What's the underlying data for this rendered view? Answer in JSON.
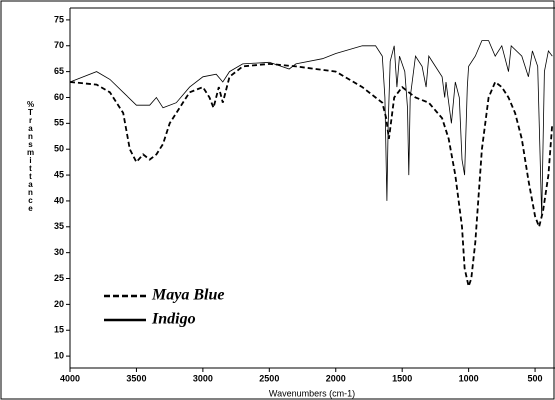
{
  "chart_data": {
    "type": "line",
    "y_label": "%Transmittance",
    "x_label": "Wavenumbers (cm-1)",
    "xlim": [
      4000,
      350
    ],
    "ylim": [
      7.7,
      77.3
    ],
    "xticks": [
      4000,
      3500,
      3000,
      2500,
      2000,
      1500,
      1000,
      500
    ],
    "yticks": [
      10,
      15,
      20,
      25,
      30,
      35,
      40,
      45,
      50,
      55,
      60,
      65,
      70,
      75
    ],
    "series": [
      {
        "name": "Maya Blue",
        "color": "#000000",
        "style": "dashed",
        "x": [
          4000,
          3800,
          3700,
          3600,
          3550,
          3500,
          3450,
          3400,
          3350,
          3300,
          3250,
          3200,
          3100,
          3000,
          2950,
          2920,
          2880,
          2850,
          2800,
          2700,
          2500,
          2300,
          2000,
          1800,
          1700,
          1650,
          1620,
          1600,
          1560,
          1500,
          1450,
          1400,
          1300,
          1200,
          1150,
          1100,
          1050,
          1030,
          1000,
          980,
          950,
          900,
          850,
          800,
          750,
          700,
          650,
          600,
          550,
          500,
          470,
          440,
          400,
          370
        ],
        "values": [
          63,
          62.5,
          61,
          57,
          50,
          47.5,
          49,
          48,
          49,
          51,
          55,
          57,
          61,
          62,
          60,
          58,
          62,
          59,
          64,
          66,
          66.5,
          66,
          65,
          62,
          60,
          59,
          56,
          52,
          60,
          62,
          61,
          60,
          59,
          56,
          52,
          45,
          35,
          27,
          23.5,
          25,
          32,
          50,
          60,
          63,
          62,
          60,
          57,
          52,
          44,
          37,
          35,
          38,
          45,
          55
        ]
      },
      {
        "name": "Indigo",
        "color": "#000000",
        "style": "solid",
        "x": [
          4000,
          3800,
          3700,
          3600,
          3500,
          3400,
          3350,
          3300,
          3200,
          3100,
          3000,
          2900,
          2850,
          2800,
          2700,
          2500,
          2350,
          2300,
          2100,
          2000,
          1800,
          1700,
          1650,
          1630,
          1615,
          1605,
          1590,
          1560,
          1540,
          1520,
          1480,
          1460,
          1450,
          1440,
          1400,
          1350,
          1320,
          1300,
          1250,
          1200,
          1180,
          1170,
          1130,
          1100,
          1070,
          1050,
          1030,
          1010,
          1000,
          950,
          900,
          850,
          800,
          750,
          700,
          680,
          600,
          550,
          520,
          480,
          450,
          430,
          400,
          370
        ],
        "values": [
          63,
          65,
          63.5,
          61,
          58.5,
          58.5,
          60,
          58,
          59,
          62,
          64,
          64.5,
          63,
          65,
          66.5,
          66.8,
          65.5,
          66.5,
          67.5,
          68.5,
          70,
          70,
          68,
          60,
          40,
          55,
          67,
          70,
          62,
          68,
          65,
          58,
          45,
          60,
          68,
          66,
          62,
          68,
          66,
          64,
          60,
          63,
          55,
          63,
          60,
          48,
          45,
          62,
          66,
          68,
          71,
          71,
          68,
          70,
          65,
          70,
          68,
          64,
          69,
          66,
          37,
          65,
          69,
          68
        ]
      }
    ]
  }
}
